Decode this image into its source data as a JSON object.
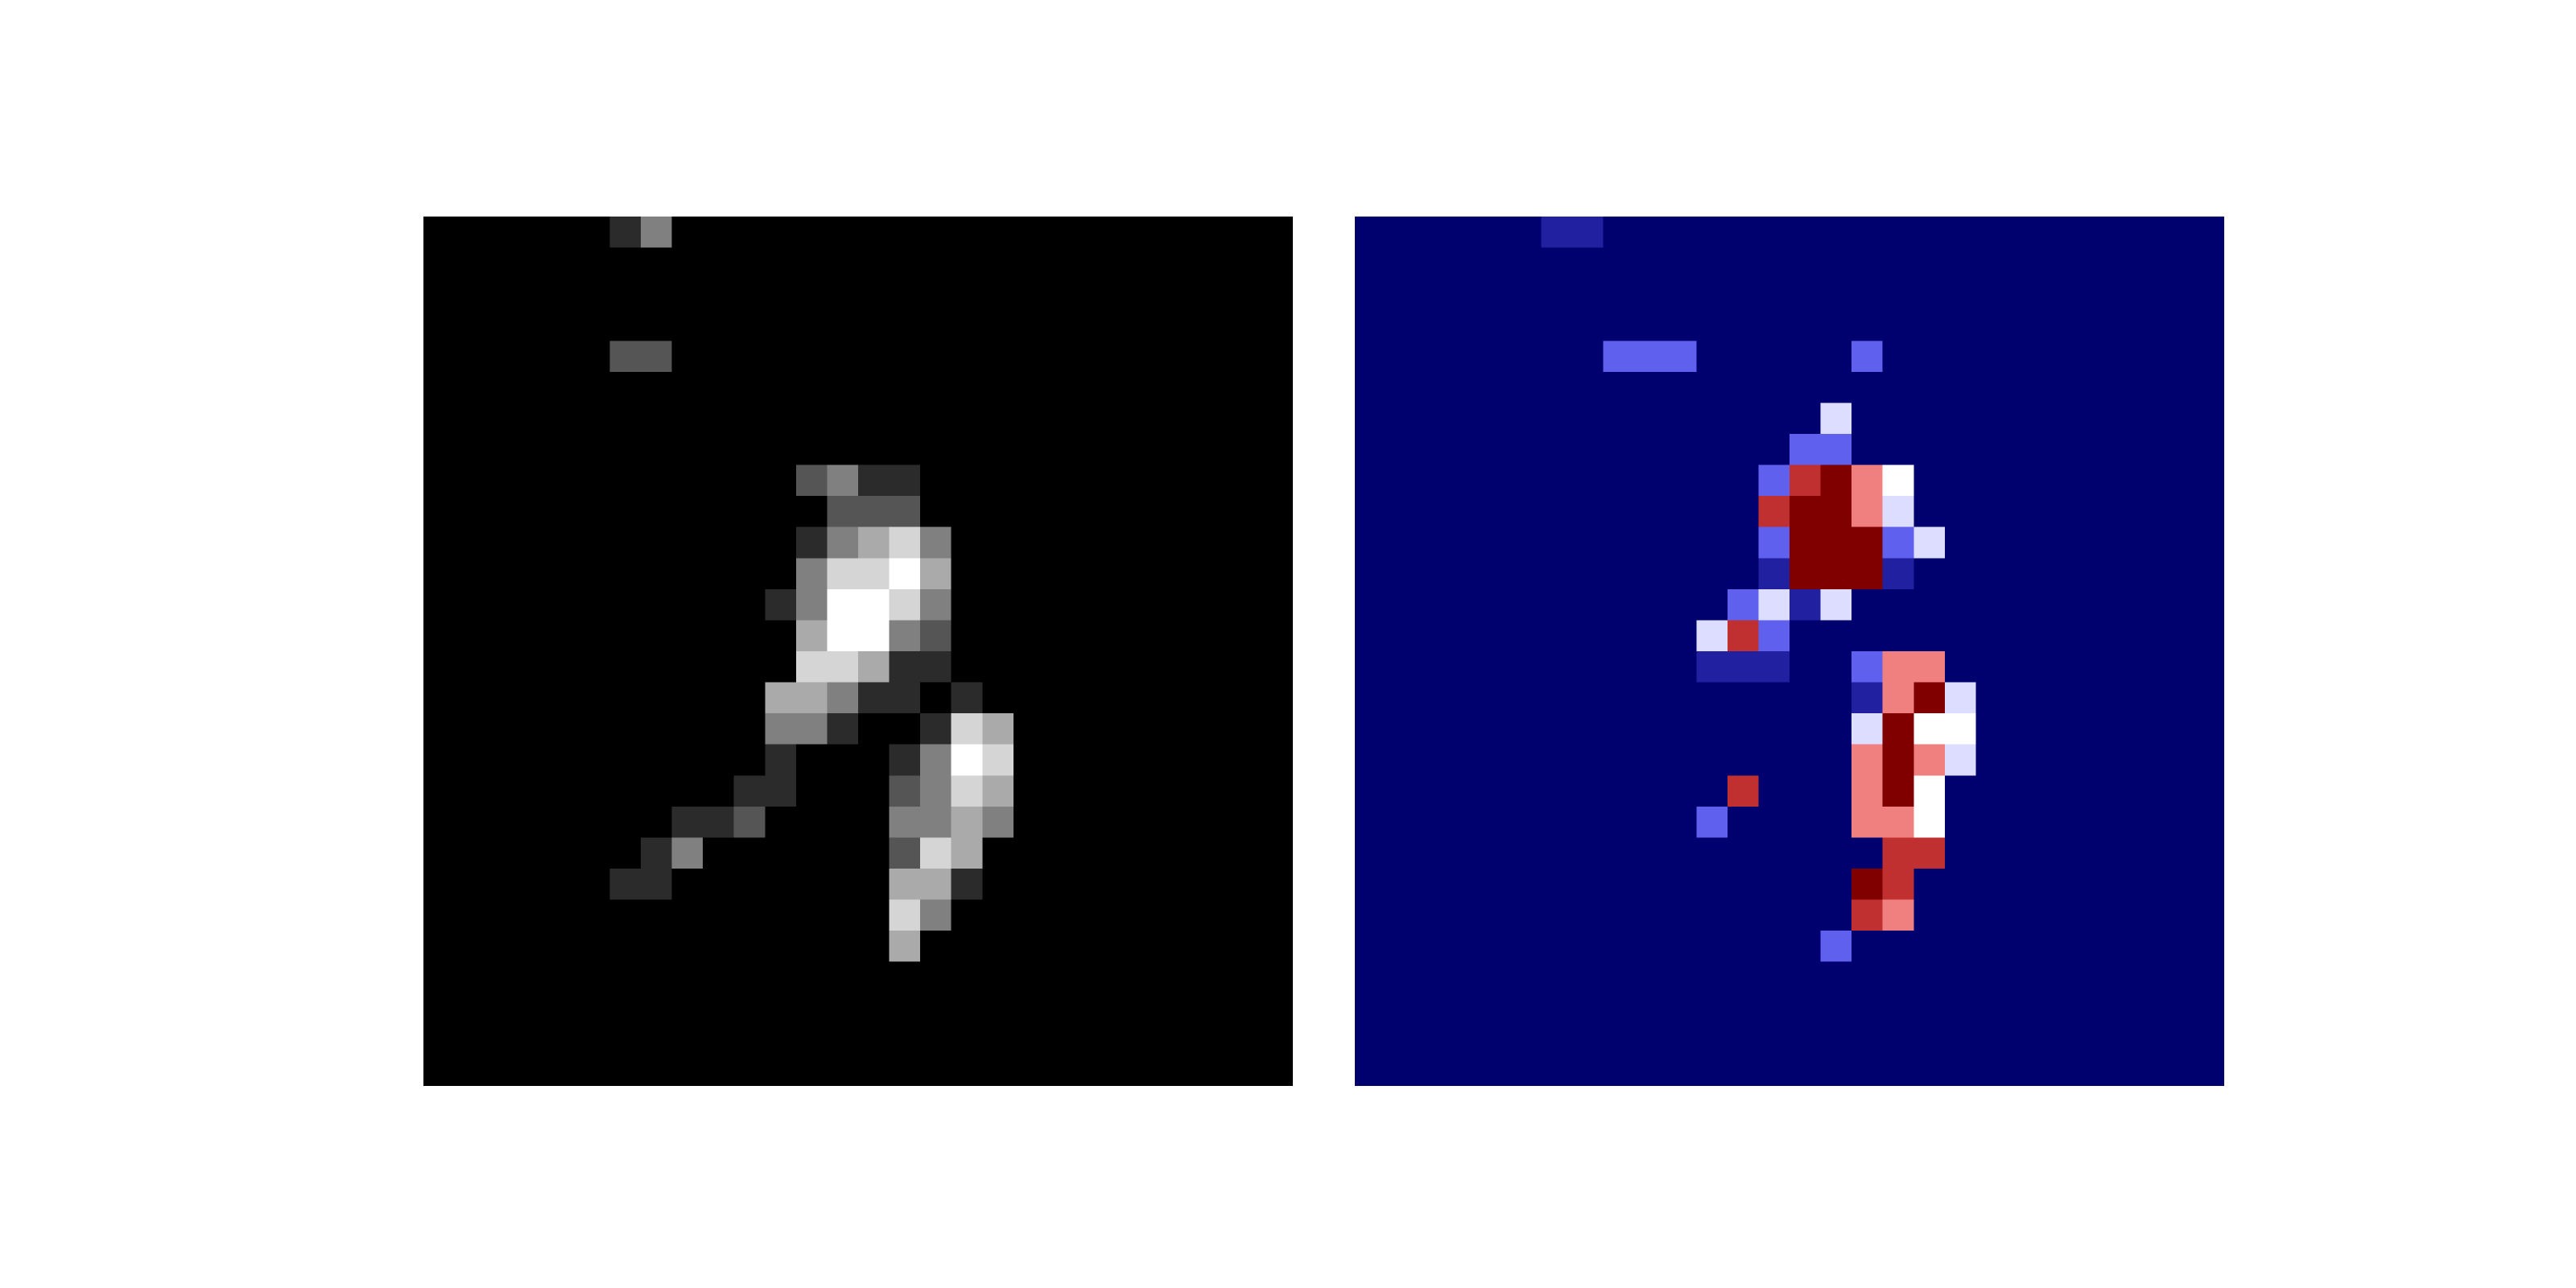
{
  "figure": {
    "grid_size": [
      28,
      28
    ],
    "panels": [
      {
        "name": "input-grayscale",
        "colormap": "gray",
        "colormap_colors": [
          "#000000",
          "#ffffff"
        ],
        "rows": [
          "0000001300000000000000000000",
          "0000000000000000000000000000",
          "0000000000000000000000000000",
          "0000000000000000000000000000",
          "0000002200000000000000000000",
          "0000000000000000000000000000",
          "0000000000000000000000000000",
          "0000000000000000000000000000",
          "0000000000002311000000000000",
          "0000000000000222000000000000",
          "0000000000001345300000000000",
          "0000000000003556400000000000",
          "0000000000013665300000000000",
          "0000000000004663200000000000",
          "0000000000005541100000000000",
          "0000000000044311010000000000",
          "0000000000033100154000000000",
          "0000000000010001365000000000",
          "0000000000110002354000000000",
          "0000000011200003343000000000",
          "0000000130000002540000000000",
          "0000001100000004410000000000",
          "0000000000000005300000000000",
          "0000000000000004000000000000",
          "0000000000000000000000000000",
          "0000000000000000000000000000",
          "0000000000000000000000000000",
          "0000000000000000000000000000"
        ]
      },
      {
        "name": "heatmap-overlay",
        "colormap": "seismic",
        "colormap_colors": [
          "#00006e",
          "#2020a0",
          "#6060ee",
          "#ddddff",
          "#ffffff",
          "#f08080",
          "#c03030",
          "#800000"
        ],
        "rows": [
          "0000001100000000000000000000",
          "0000000000000000000000000000",
          "0000000000000000000000000000",
          "0000000000000000000000000000",
          "0000000022200000200000000000",
          "0000000000000000000000000000",
          "0000000000000003000000000000",
          "0000000000000022000000000000",
          "0000000000000267540000000000",
          "0000000000000677530000000000",
          "0000000000000277723000000000",
          "0000000000000177710000000000",
          "0000000000002313000000000000",
          "0000000000036200000000000000",
          "0000000000011100255000000000",
          "0000000000000000157300000000",
          "0000000000000000374400000000",
          "0000000000000000575300000000",
          "0000000000006000574000000000",
          "0000000000020000554000000000",
          "0000000000000000066000000000",
          "0000000000000000760000000000",
          "0000000000000000650000000000",
          "0000000000000002000000000000",
          "0000000000000000000000000000",
          "0000000000000000000000000000",
          "0000000000000000000000000000",
          "0000000000000000000000000000"
        ]
      }
    ]
  }
}
